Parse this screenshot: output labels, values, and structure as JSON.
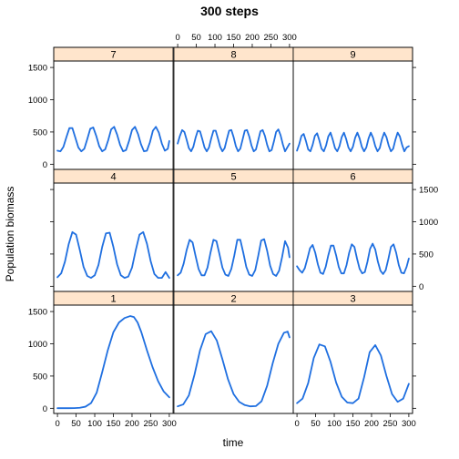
{
  "chart_data": {
    "type": "line",
    "title": "300 steps",
    "xlabel": "time",
    "ylabel": "Population biomass",
    "xlim": [
      -10,
      310
    ],
    "ylim": [
      -80,
      1600
    ],
    "x_ticks": [
      0,
      50,
      100,
      150,
      200,
      250,
      300
    ],
    "y_ticks": [
      0,
      500,
      1000,
      1500
    ],
    "strip_color": "#ffe5cc",
    "line_color": "#1f6fe0",
    "grid": false,
    "panels": [
      {
        "label": "1",
        "x": [
          0,
          15,
          30,
          45,
          60,
          75,
          90,
          105,
          120,
          135,
          150,
          165,
          180,
          195,
          205,
          215,
          225,
          240,
          255,
          270,
          285,
          300
        ],
        "y": [
          2,
          2,
          2,
          3,
          8,
          25,
          80,
          240,
          560,
          900,
          1180,
          1330,
          1400,
          1430,
          1415,
          1330,
          1180,
          900,
          640,
          420,
          260,
          170
        ]
      },
      {
        "label": "2",
        "x": [
          0,
          15,
          30,
          45,
          60,
          75,
          90,
          105,
          120,
          135,
          150,
          165,
          180,
          195,
          210,
          225,
          240,
          255,
          270,
          285,
          295,
          300
        ],
        "y": [
          30,
          60,
          200,
          520,
          900,
          1150,
          1195,
          1050,
          760,
          450,
          220,
          100,
          50,
          30,
          35,
          110,
          350,
          700,
          1000,
          1170,
          1190,
          1100
        ]
      },
      {
        "label": "3",
        "x": [
          0,
          15,
          30,
          45,
          60,
          75,
          90,
          105,
          120,
          135,
          150,
          165,
          180,
          195,
          210,
          225,
          240,
          255,
          270,
          285,
          300
        ],
        "y": [
          80,
          150,
          390,
          780,
          990,
          960,
          720,
          400,
          180,
          90,
          80,
          150,
          480,
          870,
          980,
          820,
          500,
          220,
          100,
          150,
          380
        ]
      },
      {
        "label": "4",
        "x": [
          0,
          10,
          20,
          30,
          40,
          50,
          60,
          70,
          80,
          90,
          100,
          110,
          120,
          130,
          140,
          150,
          160,
          170,
          180,
          190,
          200,
          210,
          220,
          230,
          240,
          250,
          260,
          270,
          280,
          290,
          300
        ],
        "y": [
          140,
          200,
          380,
          650,
          840,
          800,
          560,
          300,
          160,
          130,
          170,
          330,
          610,
          820,
          830,
          610,
          340,
          170,
          130,
          150,
          290,
          560,
          800,
          840,
          660,
          390,
          190,
          130,
          130,
          220,
          130
        ]
      },
      {
        "label": "5",
        "x": [
          0,
          8,
          16,
          24,
          32,
          40,
          48,
          56,
          64,
          72,
          80,
          88,
          96,
          104,
          112,
          120,
          128,
          136,
          144,
          152,
          160,
          168,
          176,
          184,
          192,
          200,
          208,
          216,
          224,
          232,
          240,
          248,
          256,
          264,
          272,
          280,
          288,
          296,
          300
        ],
        "y": [
          170,
          210,
          350,
          560,
          720,
          680,
          470,
          270,
          170,
          170,
          290,
          520,
          720,
          700,
          500,
          290,
          180,
          160,
          270,
          480,
          720,
          720,
          520,
          300,
          180,
          160,
          250,
          470,
          710,
          730,
          550,
          320,
          190,
          160,
          240,
          450,
          700,
          600,
          450
        ]
      },
      {
        "label": "6",
        "x": [
          0,
          7,
          14,
          21,
          28,
          35,
          42,
          49,
          56,
          63,
          70,
          77,
          84,
          91,
          98,
          105,
          112,
          119,
          126,
          133,
          140,
          147,
          154,
          161,
          168,
          175,
          182,
          189,
          196,
          203,
          210,
          217,
          224,
          231,
          238,
          245,
          252,
          259,
          266,
          273,
          280,
          287,
          294,
          300
        ],
        "y": [
          310,
          250,
          210,
          280,
          430,
          590,
          640,
          520,
          340,
          210,
          190,
          300,
          480,
          630,
          630,
          480,
          300,
          200,
          200,
          330,
          520,
          650,
          610,
          430,
          270,
          200,
          220,
          380,
          580,
          660,
          570,
          380,
          240,
          190,
          250,
          420,
          610,
          650,
          520,
          330,
          210,
          200,
          300,
          430
        ]
      },
      {
        "label": "7",
        "x": [
          0,
          8,
          16,
          24,
          32,
          40,
          48,
          56,
          64,
          72,
          80,
          88,
          96,
          104,
          112,
          120,
          128,
          136,
          144,
          152,
          160,
          168,
          176,
          184,
          192,
          200,
          208,
          216,
          224,
          232,
          240,
          248,
          256,
          264,
          272,
          280,
          288,
          296,
          300
        ],
        "y": [
          210,
          200,
          270,
          420,
          560,
          560,
          410,
          260,
          200,
          240,
          390,
          550,
          570,
          440,
          280,
          200,
          230,
          370,
          540,
          580,
          460,
          300,
          200,
          220,
          360,
          530,
          580,
          470,
          310,
          200,
          210,
          340,
          520,
          580,
          490,
          320,
          210,
          240,
          360
        ]
      },
      {
        "label": "8",
        "x": [
          0,
          6,
          12,
          18,
          24,
          30,
          36,
          42,
          48,
          54,
          60,
          66,
          72,
          78,
          84,
          90,
          96,
          102,
          108,
          114,
          120,
          126,
          132,
          138,
          144,
          150,
          156,
          162,
          168,
          174,
          180,
          186,
          192,
          198,
          204,
          210,
          216,
          222,
          228,
          234,
          240,
          246,
          252,
          258,
          264,
          270,
          276,
          282,
          288,
          294,
          300
        ],
        "y": [
          320,
          440,
          530,
          500,
          380,
          250,
          200,
          270,
          410,
          520,
          510,
          390,
          260,
          200,
          260,
          400,
          520,
          520,
          400,
          270,
          200,
          250,
          390,
          520,
          530,
          420,
          280,
          200,
          240,
          380,
          520,
          530,
          430,
          290,
          200,
          230,
          370,
          510,
          530,
          440,
          300,
          200,
          220,
          350,
          500,
          540,
          450,
          310,
          200,
          260,
          320
        ]
      },
      {
        "label": "9",
        "x": [
          0,
          6,
          12,
          18,
          24,
          30,
          36,
          42,
          48,
          54,
          60,
          66,
          72,
          78,
          84,
          90,
          96,
          102,
          108,
          114,
          120,
          126,
          132,
          138,
          144,
          150,
          156,
          162,
          168,
          174,
          180,
          186,
          192,
          198,
          204,
          210,
          216,
          222,
          228,
          234,
          240,
          246,
          252,
          258,
          264,
          270,
          276,
          282,
          288,
          294,
          300
        ],
        "y": [
          210,
          310,
          440,
          470,
          360,
          230,
          200,
          300,
          440,
          480,
          370,
          240,
          200,
          290,
          430,
          490,
          380,
          250,
          200,
          280,
          420,
          490,
          390,
          260,
          200,
          270,
          410,
          490,
          400,
          270,
          200,
          260,
          400,
          490,
          410,
          280,
          200,
          250,
          390,
          490,
          420,
          290,
          200,
          240,
          380,
          490,
          430,
          300,
          200,
          260,
          280
        ]
      }
    ]
  }
}
